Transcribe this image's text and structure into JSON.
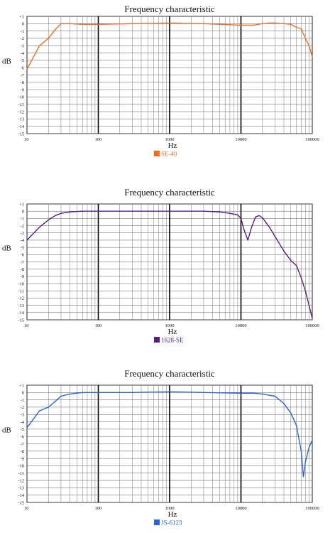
{
  "chart_data": [
    {
      "type": "line",
      "title": "Frequency  characteristic",
      "xlabel": "Hz",
      "ylabel": "dB",
      "x_scale": "log",
      "xlim": [
        10,
        100000
      ],
      "ylim": [
        -15,
        1
      ],
      "x_ticks": [
        "10",
        "100",
        "1000",
        "10000",
        "100000"
      ],
      "y_ticks": [
        "+1",
        "0",
        "-1",
        "-2",
        "-3",
        "-4",
        "-5",
        "-6",
        "-7",
        "-8",
        "-9",
        "-10",
        "-11",
        "-12",
        "-13",
        "-14",
        "-15"
      ],
      "grid": true,
      "legend_position": "bottom-center",
      "series": [
        {
          "name": "SE-40",
          "color": "#ff6a1a",
          "x": [
            10,
            15,
            20,
            25,
            30,
            40,
            60,
            100,
            300,
            1000,
            3000,
            10000,
            15000,
            20000,
            25000,
            30000,
            40000,
            50000,
            60000,
            70000,
            80000,
            90000,
            100000
          ],
          "y": [
            -6.2,
            -3.0,
            -2.0,
            -0.8,
            0.0,
            0.0,
            -0.1,
            -0.1,
            0.0,
            0.1,
            0.0,
            -0.2,
            -0.2,
            0.0,
            0.1,
            0.1,
            0.0,
            -0.1,
            -0.5,
            -0.7,
            -2.0,
            -3.0,
            -4.5
          ]
        }
      ]
    },
    {
      "type": "line",
      "title": "Frequency  characteristic",
      "xlabel": "Hz",
      "ylabel": "dB",
      "x_scale": "log",
      "xlim": [
        10,
        100000
      ],
      "ylim": [
        -15,
        1
      ],
      "x_ticks": [
        "10",
        "100",
        "1000",
        "10000",
        "100000"
      ],
      "y_ticks": [
        "+1",
        "0",
        "-1",
        "-2",
        "-3",
        "-4",
        "-5",
        "-6",
        "-7",
        "-8",
        "-9",
        "-10",
        "-11",
        "-12",
        "-13",
        "-14",
        "-15"
      ],
      "grid": true,
      "legend_position": "bottom-center",
      "series": [
        {
          "name": "1628-SE",
          "color": "#5b1a8e",
          "x": [
            10,
            15,
            20,
            25,
            30,
            40,
            60,
            100,
            300,
            1000,
            3000,
            5000,
            7000,
            9000,
            10000,
            11000,
            12500,
            14000,
            16000,
            18000,
            20000,
            25000,
            30000,
            40000,
            50000,
            60000,
            70000,
            80000,
            100000
          ],
          "y": [
            -4.0,
            -2.2,
            -1.2,
            -0.6,
            -0.3,
            -0.1,
            0.0,
            0.0,
            0.0,
            0.0,
            0.0,
            -0.1,
            -0.3,
            -0.5,
            -1.0,
            -2.5,
            -4.0,
            -2.3,
            -0.8,
            -0.6,
            -0.9,
            -2.2,
            -3.5,
            -5.5,
            -6.8,
            -7.5,
            -9.2,
            -11.0,
            -14.8
          ]
        }
      ]
    },
    {
      "type": "line",
      "title": "Frequency  characteristic",
      "xlabel": "Hz",
      "ylabel": "dB",
      "x_scale": "log",
      "xlim": [
        10,
        100000
      ],
      "ylim": [
        -15,
        1
      ],
      "x_ticks": [
        "10",
        "100",
        "1000",
        "10000",
        "100000"
      ],
      "y_ticks": [
        "+1",
        "0",
        "-1",
        "-2",
        "-3",
        "-4",
        "-5",
        "-6",
        "-7",
        "-8",
        "-9",
        "-10",
        "-11",
        "-12",
        "-13",
        "-14",
        "-15"
      ],
      "grid": true,
      "legend_position": "bottom-center",
      "series": [
        {
          "name": "JS-6123",
          "color": "#2a62e6",
          "x": [
            10,
            15,
            20,
            25,
            30,
            40,
            60,
            100,
            300,
            1000,
            3000,
            10000,
            15000,
            20000,
            30000,
            40000,
            50000,
            60000,
            70000,
            75000,
            80000,
            90000,
            100000
          ],
          "y": [
            -4.8,
            -2.5,
            -2.0,
            -1.2,
            -0.5,
            -0.2,
            0.0,
            0.0,
            0.0,
            0.1,
            0.0,
            -0.1,
            -0.1,
            -0.2,
            -0.5,
            -1.5,
            -2.8,
            -4.5,
            -8.0,
            -11.5,
            -9.5,
            -7.5,
            -6.5
          ]
        }
      ]
    }
  ]
}
